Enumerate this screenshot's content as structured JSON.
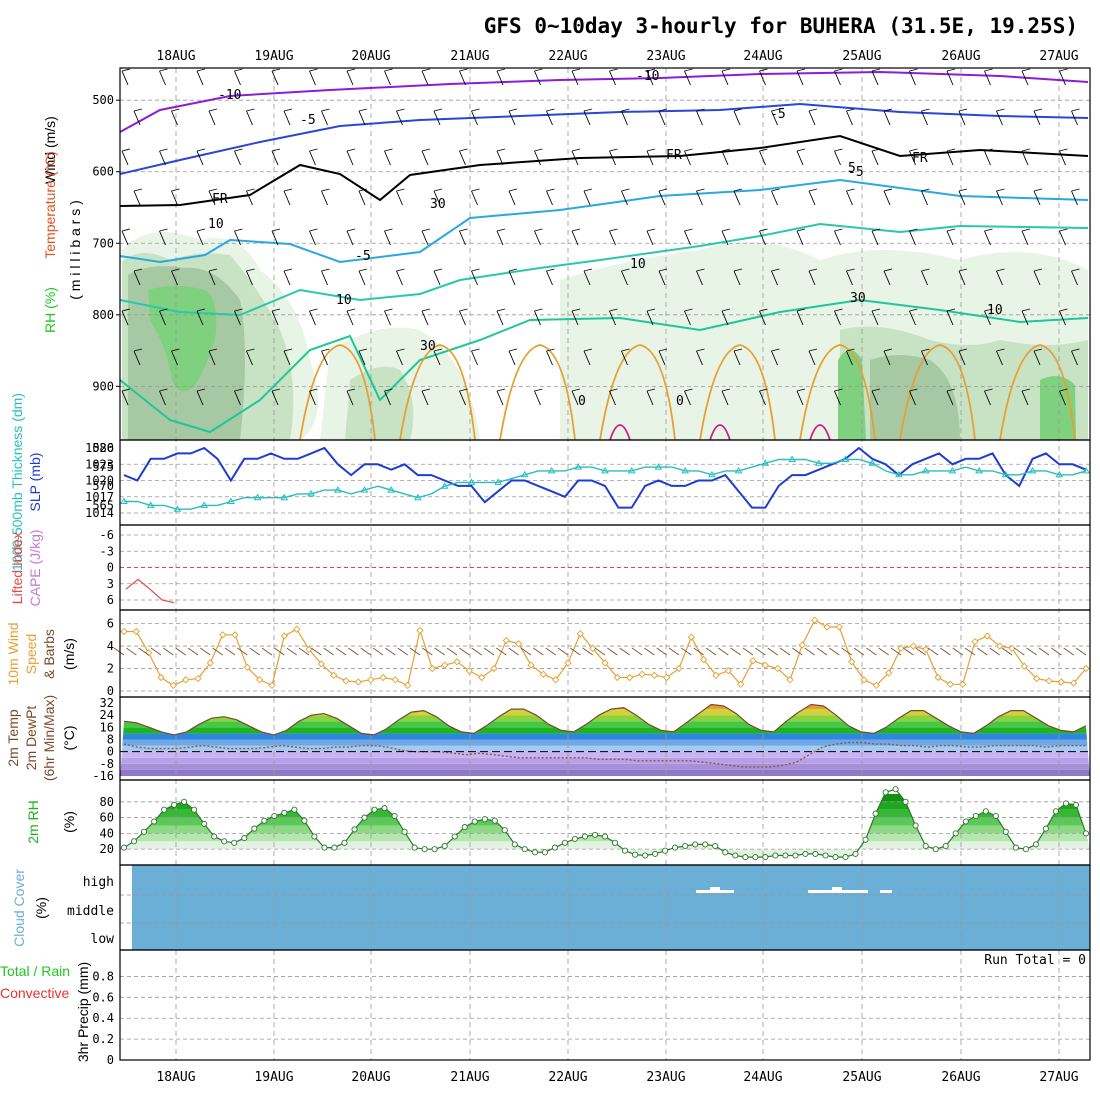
{
  "title": "GFS 0~10day 3-hourly for BUHERA (31.5E, 19.25S)",
  "dates": [
    "18AUG",
    "19AUG",
    "20AUG",
    "21AUG",
    "22AUG",
    "23AUG",
    "24AUG",
    "25AUG",
    "26AUG",
    "27AUG"
  ],
  "colors": {
    "temperature_contour": "#8a1ed6",
    "rh_fill": "#1ec81e",
    "slp": "#1e3cd2",
    "thickness": "#28bebe",
    "lifted_index": "#e64646",
    "cape": "#c87ad7",
    "wind_speed": "#e6a032",
    "rh2m": "#1eb41e",
    "cloud": "#6baed6",
    "precip_total": "#1ec81e",
    "precip_conv": "#e63232"
  },
  "panels": {
    "upper": {
      "ylabel_wind": "Wind (m/s)",
      "ylabel_temp": "Temperature (°C)",
      "ylabel_rh": "RH (%)",
      "ylabel_pres": "( m i l l i b a r s )",
      "yticks": [
        "500",
        "600",
        "700",
        "800",
        "900"
      ],
      "contour_labels": [
        "-10",
        "-10",
        "-5",
        "-5",
        "-5",
        "-5",
        "FR",
        "FR",
        "FR",
        "5",
        "10",
        "10",
        "10",
        "30",
        "30",
        "30",
        "10",
        "0",
        "0"
      ]
    },
    "slp": {
      "ylabel_thick": "1000-500mb Thickness (dm)",
      "ylabel_slp": "SLP (mb)",
      "left_ticks": [
        "580",
        "575",
        "570",
        "565"
      ],
      "right_ticks": [
        "1026",
        "1023",
        "1020",
        "1017",
        "1014"
      ]
    },
    "li": {
      "ylabel_li": "Lifted Index",
      "ylabel_cape": "CAPE (J/kg)",
      "yticks": [
        "-6",
        "-3",
        "0",
        "3",
        "6"
      ]
    },
    "wind10": {
      "ylabel": "10m Wind",
      "ylabel2": "Speed",
      "ylabel3": "& Barbs",
      "unit": "(m/s)",
      "yticks": [
        "6",
        "4",
        "2",
        "0"
      ]
    },
    "temp2m": {
      "ylabel1": "2m Temp",
      "ylabel2": "2m DewPt",
      "ylabel3": "(6hr Min/Max)",
      "unit": "(°C)",
      "yticks": [
        "32",
        "24",
        "16",
        "8",
        "0",
        "-8",
        "-16"
      ]
    },
    "rh2m": {
      "ylabel": "2m RH",
      "unit": "(%)",
      "yticks": [
        "80",
        "60",
        "40",
        "20"
      ]
    },
    "cloud": {
      "ylabel": "Cloud Cover",
      "unit": "(%)",
      "levels": [
        "high",
        "middle",
        "low"
      ]
    },
    "precip": {
      "ylabel1": "Total / Rain",
      "ylabel2": "Convective",
      "ylabel3": "3hr Precip (mm)",
      "yticks": [
        "0.8",
        "0.6",
        "0.4",
        "0.2",
        "0"
      ],
      "run_total": "Run Total = 0"
    }
  },
  "chart_data": {
    "type": "meteogram",
    "dates": [
      "18AUG",
      "19AUG",
      "20AUG",
      "21AUG",
      "22AUG",
      "23AUG",
      "24AUG",
      "25AUG",
      "26AUG",
      "27AUG"
    ],
    "slp_mb": [
      1021,
      1020,
      1024,
      1024,
      1025,
      1025,
      1026,
      1024,
      1020,
      1024,
      1024,
      1025,
      1024,
      1024,
      1025,
      1026,
      1023,
      1021,
      1023,
      1023,
      1022,
      1023,
      1021,
      1021,
      1020,
      1019,
      1019,
      1016,
      1018,
      1020,
      1020,
      1019,
      1018,
      1017,
      1020,
      1020,
      1019,
      1015,
      1015,
      1019,
      1020,
      1019,
      1019,
      1020,
      1020,
      1021,
      1018,
      1015,
      1015,
      1019,
      1021,
      1021,
      1022,
      1023,
      1024,
      1026,
      1024,
      1023,
      1021,
      1023,
      1024,
      1025,
      1023,
      1024,
      1024,
      1025,
      1021,
      1019,
      1024,
      1025,
      1023,
      1023,
      1022
    ],
    "thickness_dm": [
      566,
      566,
      565,
      565,
      564,
      564,
      565,
      565,
      566,
      567,
      567,
      567,
      567,
      568,
      568,
      569,
      569,
      568,
      569,
      570,
      569,
      568,
      567,
      568,
      570,
      571,
      571,
      571,
      571,
      572,
      573,
      574,
      574,
      574,
      575,
      575,
      574,
      574,
      574,
      575,
      575,
      575,
      574,
      574,
      573,
      574,
      574,
      575,
      576,
      577,
      577,
      577,
      576,
      576,
      577,
      577,
      576,
      574,
      573,
      573,
      574,
      574,
      574,
      575,
      574,
      574,
      573,
      573,
      574,
      574,
      573,
      573,
      574
    ],
    "lifted_index": [
      4,
      2.2,
      4,
      6,
      6.5
    ],
    "wind10_ms": [
      5.3,
      5.3,
      3.4,
      1.2,
      0.5,
      1.0,
      1.1,
      2.5,
      5.0,
      5.0,
      2.1,
      1.0,
      0.5,
      4.9,
      5.5,
      3.7,
      2.4,
      1.4,
      0.9,
      0.8,
      1.0,
      1.2,
      1.0,
      0.5,
      5.4,
      2.0,
      2.3,
      2.6,
      1.8,
      1.2,
      2.0,
      4.5,
      4.2,
      2.3,
      1.5,
      1.0,
      2.5,
      5.1,
      3.8,
      2.5,
      1.2,
      1.2,
      1.5,
      1.4,
      1.2,
      2.0,
      4.8,
      2.8,
      1.4,
      1.8,
      0.6,
      2.7,
      2.3,
      2.0,
      1.0,
      4.1,
      6.3,
      5.7,
      5.7,
      2.6,
      1.0,
      0.5,
      1.6,
      3.8,
      4.0,
      3.7,
      1.2,
      0.6,
      0.6,
      4.4,
      4.9,
      4.0,
      3.8,
      2.2,
      1.1,
      0.9,
      0.8,
      0.7,
      2.0
    ],
    "temp2m_C": [
      20,
      19,
      16,
      13,
      11,
      13,
      18,
      22,
      23,
      21,
      17,
      13,
      11,
      14,
      20,
      24,
      25,
      22,
      17,
      12,
      11,
      15,
      21,
      26,
      27,
      23,
      17,
      13,
      12,
      17,
      23,
      28,
      28,
      24,
      18,
      14,
      13,
      18,
      24,
      28,
      29,
      24,
      18,
      14,
      13,
      19,
      25,
      31,
      30,
      25,
      18,
      14,
      13,
      20,
      26,
      31,
      30,
      24,
      17,
      13,
      12,
      16,
      22,
      27,
      27,
      22,
      17,
      13,
      12,
      17,
      23,
      27,
      27,
      22,
      17,
      14,
      13,
      17
    ],
    "dewpt2m_C": [
      5,
      3,
      2,
      2,
      2,
      3,
      4,
      3,
      2,
      2,
      2,
      3,
      4,
      3,
      2,
      2,
      3,
      3,
      4,
      4,
      3,
      1,
      0,
      0,
      0,
      -1,
      -2,
      -1,
      -2,
      -3,
      -4,
      -4,
      -4,
      -4,
      -4,
      -4,
      -5,
      -5,
      -5,
      -6,
      -6,
      -6,
      -6,
      -6,
      -7,
      -8,
      -9,
      -10,
      -10,
      -10,
      -9,
      -7,
      -2,
      3,
      5,
      6,
      6,
      5,
      5,
      4,
      4,
      3,
      4,
      4,
      3,
      3,
      4,
      4,
      4,
      4,
      3,
      4,
      4,
      4
    ],
    "rh2m_pct": [
      22,
      30,
      42,
      55,
      70,
      76,
      80,
      70,
      52,
      36,
      30,
      28,
      34,
      46,
      56,
      62,
      66,
      70,
      56,
      36,
      22,
      22,
      28,
      45,
      60,
      70,
      72,
      62,
      42,
      22,
      20,
      20,
      24,
      36,
      48,
      55,
      58,
      56,
      44,
      26,
      20,
      16,
      16,
      22,
      28,
      33,
      36,
      38,
      36,
      28,
      18,
      13,
      12,
      14,
      18,
      22,
      24,
      26,
      26,
      24,
      16,
      12,
      10,
      10,
      10,
      12,
      12,
      12,
      14,
      14,
      12,
      10,
      10,
      14,
      32,
      65,
      92,
      96,
      80,
      50,
      24,
      20,
      24,
      40,
      55,
      62,
      68,
      62,
      42,
      22,
      20,
      26,
      46,
      68,
      78,
      76,
      40
    ],
    "cloud_pct": {
      "high": "0",
      "middle": "0",
      "low": "0"
    },
    "precip_run_total_mm": 0,
    "xlabel": "",
    "title": "GFS 0~10day 3-hourly for BUHERA (31.5E, 19.25S)"
  }
}
